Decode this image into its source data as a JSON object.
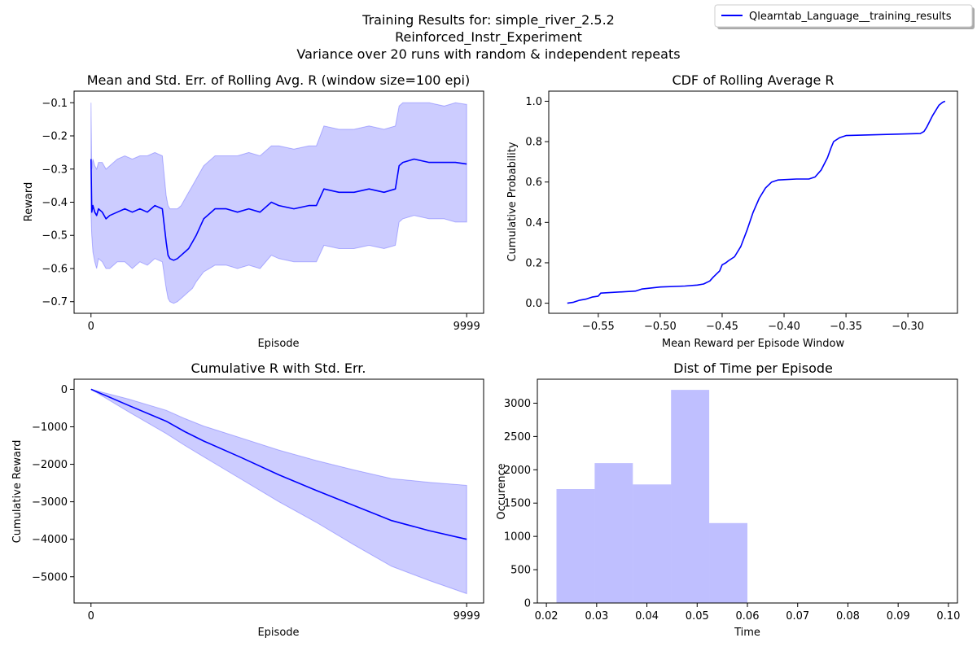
{
  "figure": {
    "suptitle_lines": [
      "Training Results for: simple_river_2.5.2",
      "Reinforced_Instr_Experiment",
      "Variance over 20 runs with random & independent repeats"
    ],
    "legend": {
      "label": "Qlearntab_Language__training_results",
      "placement": "top-right",
      "color": "#0000ff"
    }
  },
  "chart_data": [
    {
      "id": "rolling",
      "type": "line",
      "title": "Mean and Std. Err. of Rolling Avg. R (window size=100 epi)",
      "xlabel": "Episode",
      "ylabel": "Reward",
      "xlim": [
        -450,
        10450
      ],
      "ylim": [
        -0.735,
        -0.065
      ],
      "xticks": [
        0,
        9999
      ],
      "xtick_labels": [
        "0",
        "9999"
      ],
      "yticks": [
        -0.7,
        -0.6,
        -0.5,
        -0.4,
        -0.3,
        -0.2,
        -0.1
      ],
      "ytick_labels": [
        "−0.7",
        "−0.6",
        "−0.5",
        "−0.4",
        "−0.3",
        "−0.2",
        "−0.1"
      ],
      "line_color": "#0000ff",
      "band_color": "#0000ff",
      "series": [
        {
          "x": [
            0,
            20,
            50,
            100,
            150,
            200,
            300,
            400,
            500,
            700,
            900,
            1100,
            1300,
            1500,
            1700,
            1900,
            2000,
            2050,
            2100,
            2200,
            2300,
            2400,
            2500,
            2600,
            2700,
            2800,
            3000,
            3300,
            3600,
            3900,
            4200,
            4500,
            4800,
            5000,
            5400,
            5800,
            6000,
            6200,
            6600,
            7000,
            7400,
            7800,
            8100,
            8200,
            8300,
            8600,
            9000,
            9400,
            9700,
            9999
          ],
          "mean": [
            -0.27,
            -0.43,
            -0.41,
            -0.43,
            -0.44,
            -0.42,
            -0.43,
            -0.45,
            -0.44,
            -0.43,
            -0.42,
            -0.43,
            -0.42,
            -0.43,
            -0.41,
            -0.42,
            -0.52,
            -0.56,
            -0.57,
            -0.575,
            -0.57,
            -0.56,
            -0.55,
            -0.54,
            -0.52,
            -0.5,
            -0.45,
            -0.42,
            -0.42,
            -0.43,
            -0.42,
            -0.43,
            -0.4,
            -0.41,
            -0.42,
            -0.41,
            -0.41,
            -0.36,
            -0.37,
            -0.37,
            -0.36,
            -0.37,
            -0.36,
            -0.29,
            -0.28,
            -0.27,
            -0.28,
            -0.28,
            -0.28,
            -0.285
          ],
          "upper": [
            -0.1,
            -0.3,
            -0.27,
            -0.29,
            -0.3,
            -0.28,
            -0.28,
            -0.3,
            -0.29,
            -0.27,
            -0.26,
            -0.27,
            -0.26,
            -0.26,
            -0.25,
            -0.26,
            -0.38,
            -0.41,
            -0.42,
            -0.42,
            -0.42,
            -0.41,
            -0.39,
            -0.37,
            -0.35,
            -0.33,
            -0.29,
            -0.26,
            -0.26,
            -0.26,
            -0.25,
            -0.26,
            -0.23,
            -0.23,
            -0.24,
            -0.23,
            -0.23,
            -0.17,
            -0.18,
            -0.18,
            -0.17,
            -0.18,
            -0.17,
            -0.11,
            -0.1,
            -0.1,
            -0.1,
            -0.11,
            -0.1,
            -0.105
          ],
          "lower": [
            -0.44,
            -0.5,
            -0.55,
            -0.58,
            -0.6,
            -0.57,
            -0.58,
            -0.6,
            -0.6,
            -0.58,
            -0.58,
            -0.6,
            -0.58,
            -0.59,
            -0.57,
            -0.58,
            -0.66,
            -0.69,
            -0.7,
            -0.705,
            -0.7,
            -0.69,
            -0.68,
            -0.67,
            -0.66,
            -0.64,
            -0.61,
            -0.59,
            -0.59,
            -0.6,
            -0.59,
            -0.6,
            -0.56,
            -0.57,
            -0.58,
            -0.58,
            -0.58,
            -0.53,
            -0.54,
            -0.54,
            -0.53,
            -0.54,
            -0.53,
            -0.46,
            -0.45,
            -0.44,
            -0.45,
            -0.45,
            -0.46,
            -0.46
          ]
        }
      ]
    },
    {
      "id": "cdf",
      "type": "line",
      "title": "CDF of Rolling Average R",
      "xlabel": "Mean Reward per Episode Window",
      "ylabel": "Cumulative Probability",
      "xlim": [
        -0.59,
        -0.26
      ],
      "ylim": [
        -0.05,
        1.05
      ],
      "xticks": [
        -0.55,
        -0.5,
        -0.45,
        -0.4,
        -0.35,
        -0.3
      ],
      "xtick_labels": [
        "−0.55",
        "−0.50",
        "−0.45",
        "−0.40",
        "−0.35",
        "−0.30"
      ],
      "yticks": [
        0.0,
        0.2,
        0.4,
        0.6,
        0.8,
        1.0
      ],
      "ytick_labels": [
        "0.0",
        "0.2",
        "0.4",
        "0.6",
        "0.8",
        "1.0"
      ],
      "line_color": "#0000ff",
      "series": [
        {
          "x": [
            -0.575,
            -0.57,
            -0.565,
            -0.56,
            -0.555,
            -0.55,
            -0.548,
            -0.52,
            -0.515,
            -0.5,
            -0.48,
            -0.47,
            -0.465,
            -0.46,
            -0.457,
            -0.452,
            -0.45,
            -0.447,
            -0.445,
            -0.44,
            -0.435,
            -0.43,
            -0.425,
            -0.42,
            -0.415,
            -0.41,
            -0.405,
            -0.39,
            -0.38,
            -0.375,
            -0.37,
            -0.365,
            -0.362,
            -0.36,
            -0.355,
            -0.35,
            -0.29,
            -0.287,
            -0.285,
            -0.28,
            -0.275,
            -0.272,
            -0.27
          ],
          "y": [
            0.0,
            0.005,
            0.015,
            0.02,
            0.03,
            0.035,
            0.05,
            0.06,
            0.07,
            0.08,
            0.085,
            0.09,
            0.095,
            0.11,
            0.13,
            0.16,
            0.19,
            0.2,
            0.21,
            0.23,
            0.28,
            0.36,
            0.45,
            0.52,
            0.57,
            0.6,
            0.61,
            0.615,
            0.615,
            0.625,
            0.66,
            0.72,
            0.77,
            0.8,
            0.82,
            0.83,
            0.84,
            0.85,
            0.87,
            0.93,
            0.98,
            0.995,
            1.0
          ]
        }
      ]
    },
    {
      "id": "cumulative",
      "type": "line",
      "title": "Cumulative R with Std. Err.",
      "xlabel": "Episode",
      "ylabel": "Cumulative Reward",
      "xlim": [
        -450,
        10450
      ],
      "ylim": [
        -5700,
        270
      ],
      "xticks": [
        0,
        9999
      ],
      "xtick_labels": [
        "0",
        "9999"
      ],
      "yticks": [
        -5000,
        -4000,
        -3000,
        -2000,
        -1000,
        0
      ],
      "ytick_labels": [
        "−5000",
        "−4000",
        "−3000",
        "−2000",
        "−1000",
        "0"
      ],
      "line_color": "#0000ff",
      "band_color": "#0000ff",
      "series": [
        {
          "x": [
            0,
            1000,
            2000,
            2500,
            3000,
            4000,
            5000,
            6000,
            7000,
            8000,
            9000,
            9999
          ],
          "mean": [
            0,
            -430,
            -850,
            -1130,
            -1380,
            -1820,
            -2280,
            -2700,
            -3100,
            -3500,
            -3770,
            -4000
          ],
          "upper": [
            0,
            -260,
            -560,
            -780,
            -980,
            -1300,
            -1620,
            -1900,
            -2150,
            -2380,
            -2480,
            -2560
          ],
          "lower": [
            0,
            -600,
            -1180,
            -1500,
            -1800,
            -2400,
            -3000,
            -3550,
            -4150,
            -4720,
            -5100,
            -5450
          ]
        }
      ]
    },
    {
      "id": "hist",
      "type": "bar",
      "title": "Dist of Time per Episode",
      "xlabel": "Time",
      "ylabel": "Occurence",
      "xlim": [
        0.0182,
        0.1018
      ],
      "ylim": [
        0,
        3360
      ],
      "xticks": [
        0.02,
        0.03,
        0.04,
        0.05,
        0.06,
        0.07,
        0.08,
        0.09,
        0.1
      ],
      "xtick_labels": [
        "0.02",
        "0.03",
        "0.04",
        "0.05",
        "0.06",
        "0.07",
        "0.08",
        "0.09",
        "0.10"
      ],
      "yticks": [
        0,
        500,
        1000,
        1500,
        2000,
        2500,
        3000
      ],
      "ytick_labels": [
        "0",
        "500",
        "1000",
        "1500",
        "2000",
        "2500",
        "3000"
      ],
      "bar_color": "#0000ff",
      "bin_edges": [
        0.022,
        0.0296,
        0.0372,
        0.0448,
        0.0524,
        0.06,
        0.0676,
        0.0752,
        0.0828,
        0.0904,
        0.098
      ],
      "counts": [
        1710,
        2100,
        1780,
        3200,
        1200,
        5,
        0,
        5,
        0,
        0
      ]
    }
  ]
}
